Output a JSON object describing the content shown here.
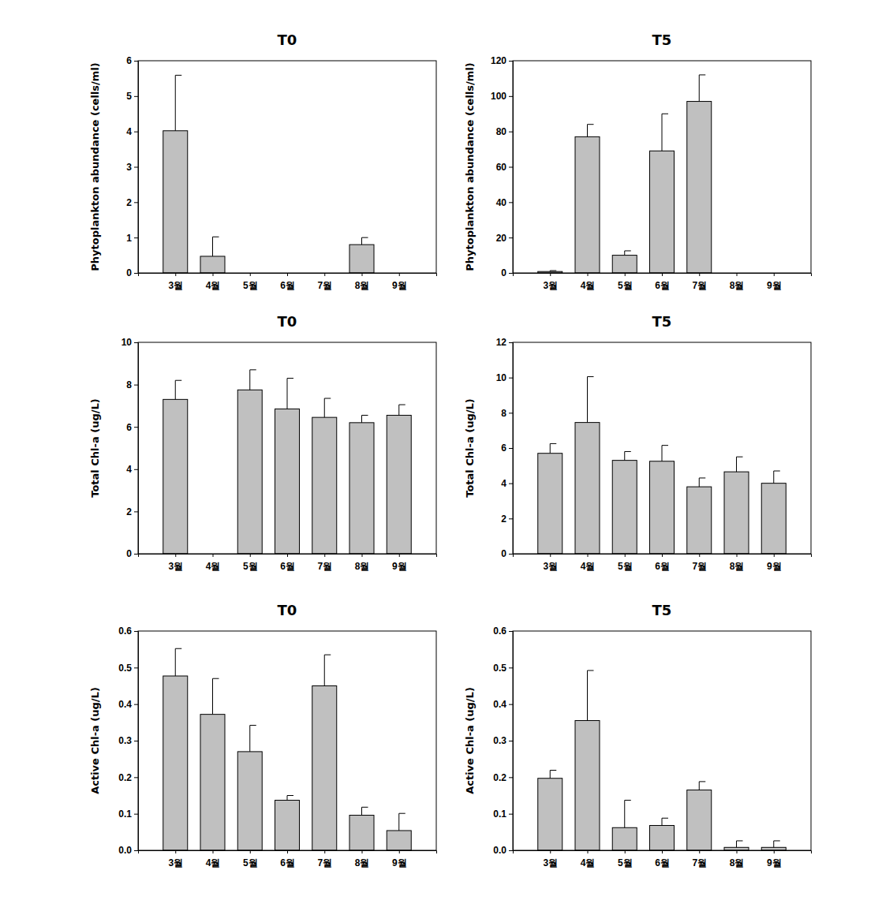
{
  "chart_data": [
    {
      "type": "bar",
      "title": "T0",
      "ylabel": "Phytoplankton abundance (cells/ml)",
      "categories": [
        "3월",
        "4월",
        "5월",
        "6월",
        "7월",
        "8월",
        "9월"
      ],
      "values": [
        4.02,
        0.47,
        0,
        0,
        0,
        0.8,
        0
      ],
      "errors": [
        1.57,
        0.55,
        0,
        0,
        0,
        0.2,
        0
      ],
      "color": "#c0c0c0",
      "ylim": [
        0,
        6
      ],
      "yticks": [
        0,
        1,
        2,
        3,
        4,
        5,
        6
      ]
    },
    {
      "type": "bar",
      "title": "T5",
      "ylabel": "Phytoplankton abundance (cells/ml)",
      "categories": [
        "3월",
        "4월",
        "5월",
        "6월",
        "7월",
        "8월",
        "9월"
      ],
      "values": [
        0.8,
        77,
        10,
        69,
        97,
        0,
        0
      ],
      "errors": [
        0.5,
        7,
        2.5,
        21,
        15,
        0,
        0
      ],
      "color": "#c0c0c0",
      "ylim": [
        0,
        120
      ],
      "yticks": [
        0,
        20,
        40,
        60,
        80,
        100,
        120
      ]
    },
    {
      "type": "bar",
      "title": "T0",
      "ylabel": "Total Chl-a (ug/L)",
      "categories": [
        "3월",
        "4월",
        "5월",
        "6월",
        "7월",
        "8월",
        "9월"
      ],
      "values": [
        7.3,
        null,
        7.75,
        6.85,
        6.45,
        6.2,
        6.55
      ],
      "errors": [
        0.9,
        null,
        0.95,
        1.45,
        0.9,
        0.35,
        0.5
      ],
      "color": "#c0c0c0",
      "ylim": [
        0,
        10
      ],
      "yticks": [
        0,
        2,
        4,
        6,
        8,
        10
      ]
    },
    {
      "type": "bar",
      "title": "T5",
      "ylabel": "Total Chl-a (ug/L)",
      "categories": [
        "3월",
        "4월",
        "5월",
        "6월",
        "7월",
        "8월",
        "9월"
      ],
      "values": [
        5.7,
        7.45,
        5.3,
        5.25,
        3.8,
        4.65,
        4.0
      ],
      "errors": [
        0.55,
        2.6,
        0.5,
        0.9,
        0.5,
        0.85,
        0.7
      ],
      "color": "#c0c0c0",
      "ylim": [
        0,
        12
      ],
      "yticks": [
        0,
        2,
        4,
        6,
        8,
        10,
        12
      ]
    },
    {
      "type": "bar",
      "title": "T0",
      "ylabel": "Active Chl-a (ug/L)",
      "categories": [
        "3월",
        "4월",
        "5월",
        "6월",
        "7월",
        "8월",
        "9월"
      ],
      "values": [
        0.477,
        0.372,
        0.27,
        0.137,
        0.45,
        0.096,
        0.054
      ],
      "errors": [
        0.075,
        0.098,
        0.072,
        0.013,
        0.085,
        0.022,
        0.047
      ],
      "color": "#c0c0c0",
      "ylim": [
        0,
        0.6
      ],
      "yticks": [
        {
          "value": 0,
          "label": "0.0"
        },
        0.1,
        0.2,
        0.3,
        0.4,
        0.5,
        0.6
      ]
    },
    {
      "type": "bar",
      "title": "T5",
      "ylabel": "Active Chl-a (ug/L)",
      "categories": [
        "3월",
        "4월",
        "5월",
        "6월",
        "7월",
        "8월",
        "9월"
      ],
      "values": [
        0.197,
        0.355,
        0.062,
        0.068,
        0.165,
        0.008,
        0.008
      ],
      "errors": [
        0.022,
        0.137,
        0.075,
        0.02,
        0.023,
        0.018,
        0.018
      ],
      "color": "#c0c0c0",
      "ylim": [
        0,
        0.6
      ],
      "yticks": [
        {
          "value": 0,
          "label": "0.0"
        },
        0.1,
        0.2,
        0.3,
        0.4,
        0.5,
        0.6
      ]
    }
  ]
}
